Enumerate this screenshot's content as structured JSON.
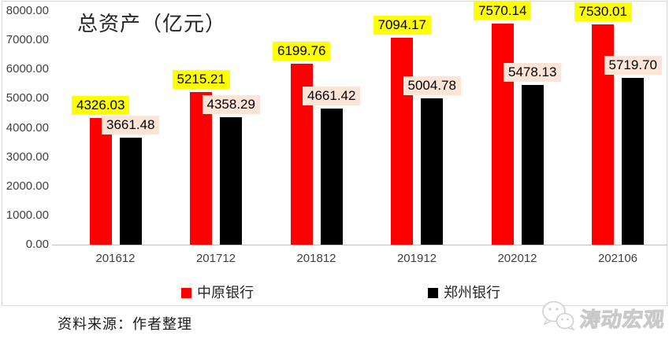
{
  "chart_data": {
    "type": "bar",
    "title": "总资产（亿元）",
    "categories": [
      "201612",
      "201712",
      "201812",
      "201912",
      "202012",
      "202106"
    ],
    "series": [
      {
        "id": "zhongyuan-bank",
        "name": "中原银行",
        "color": "#ff0000",
        "label_bg": "#ffff00",
        "values": [
          4326.03,
          5215.21,
          6199.76,
          7094.17,
          7570.14,
          7530.01
        ]
      },
      {
        "id": "zhengzhou-bank",
        "name": "郑州银行",
        "color": "#000000",
        "label_bg": "#fce4d6",
        "values": [
          3661.48,
          4358.29,
          4661.42,
          5004.78,
          5478.13,
          5719.7
        ]
      }
    ],
    "ylim": [
      0,
      8000
    ],
    "ytick_step": 1000,
    "yticks": [
      "8000.00",
      "7000.00",
      "6000.00",
      "5000.00",
      "4000.00",
      "3000.00",
      "2000.00",
      "1000.00",
      "0.00"
    ],
    "value_label_decimals": 2,
    "grid": false,
    "legend_position": "bottom"
  },
  "footer": {
    "source": "资料来源：作者整理",
    "watermark": "涛动宏观"
  }
}
